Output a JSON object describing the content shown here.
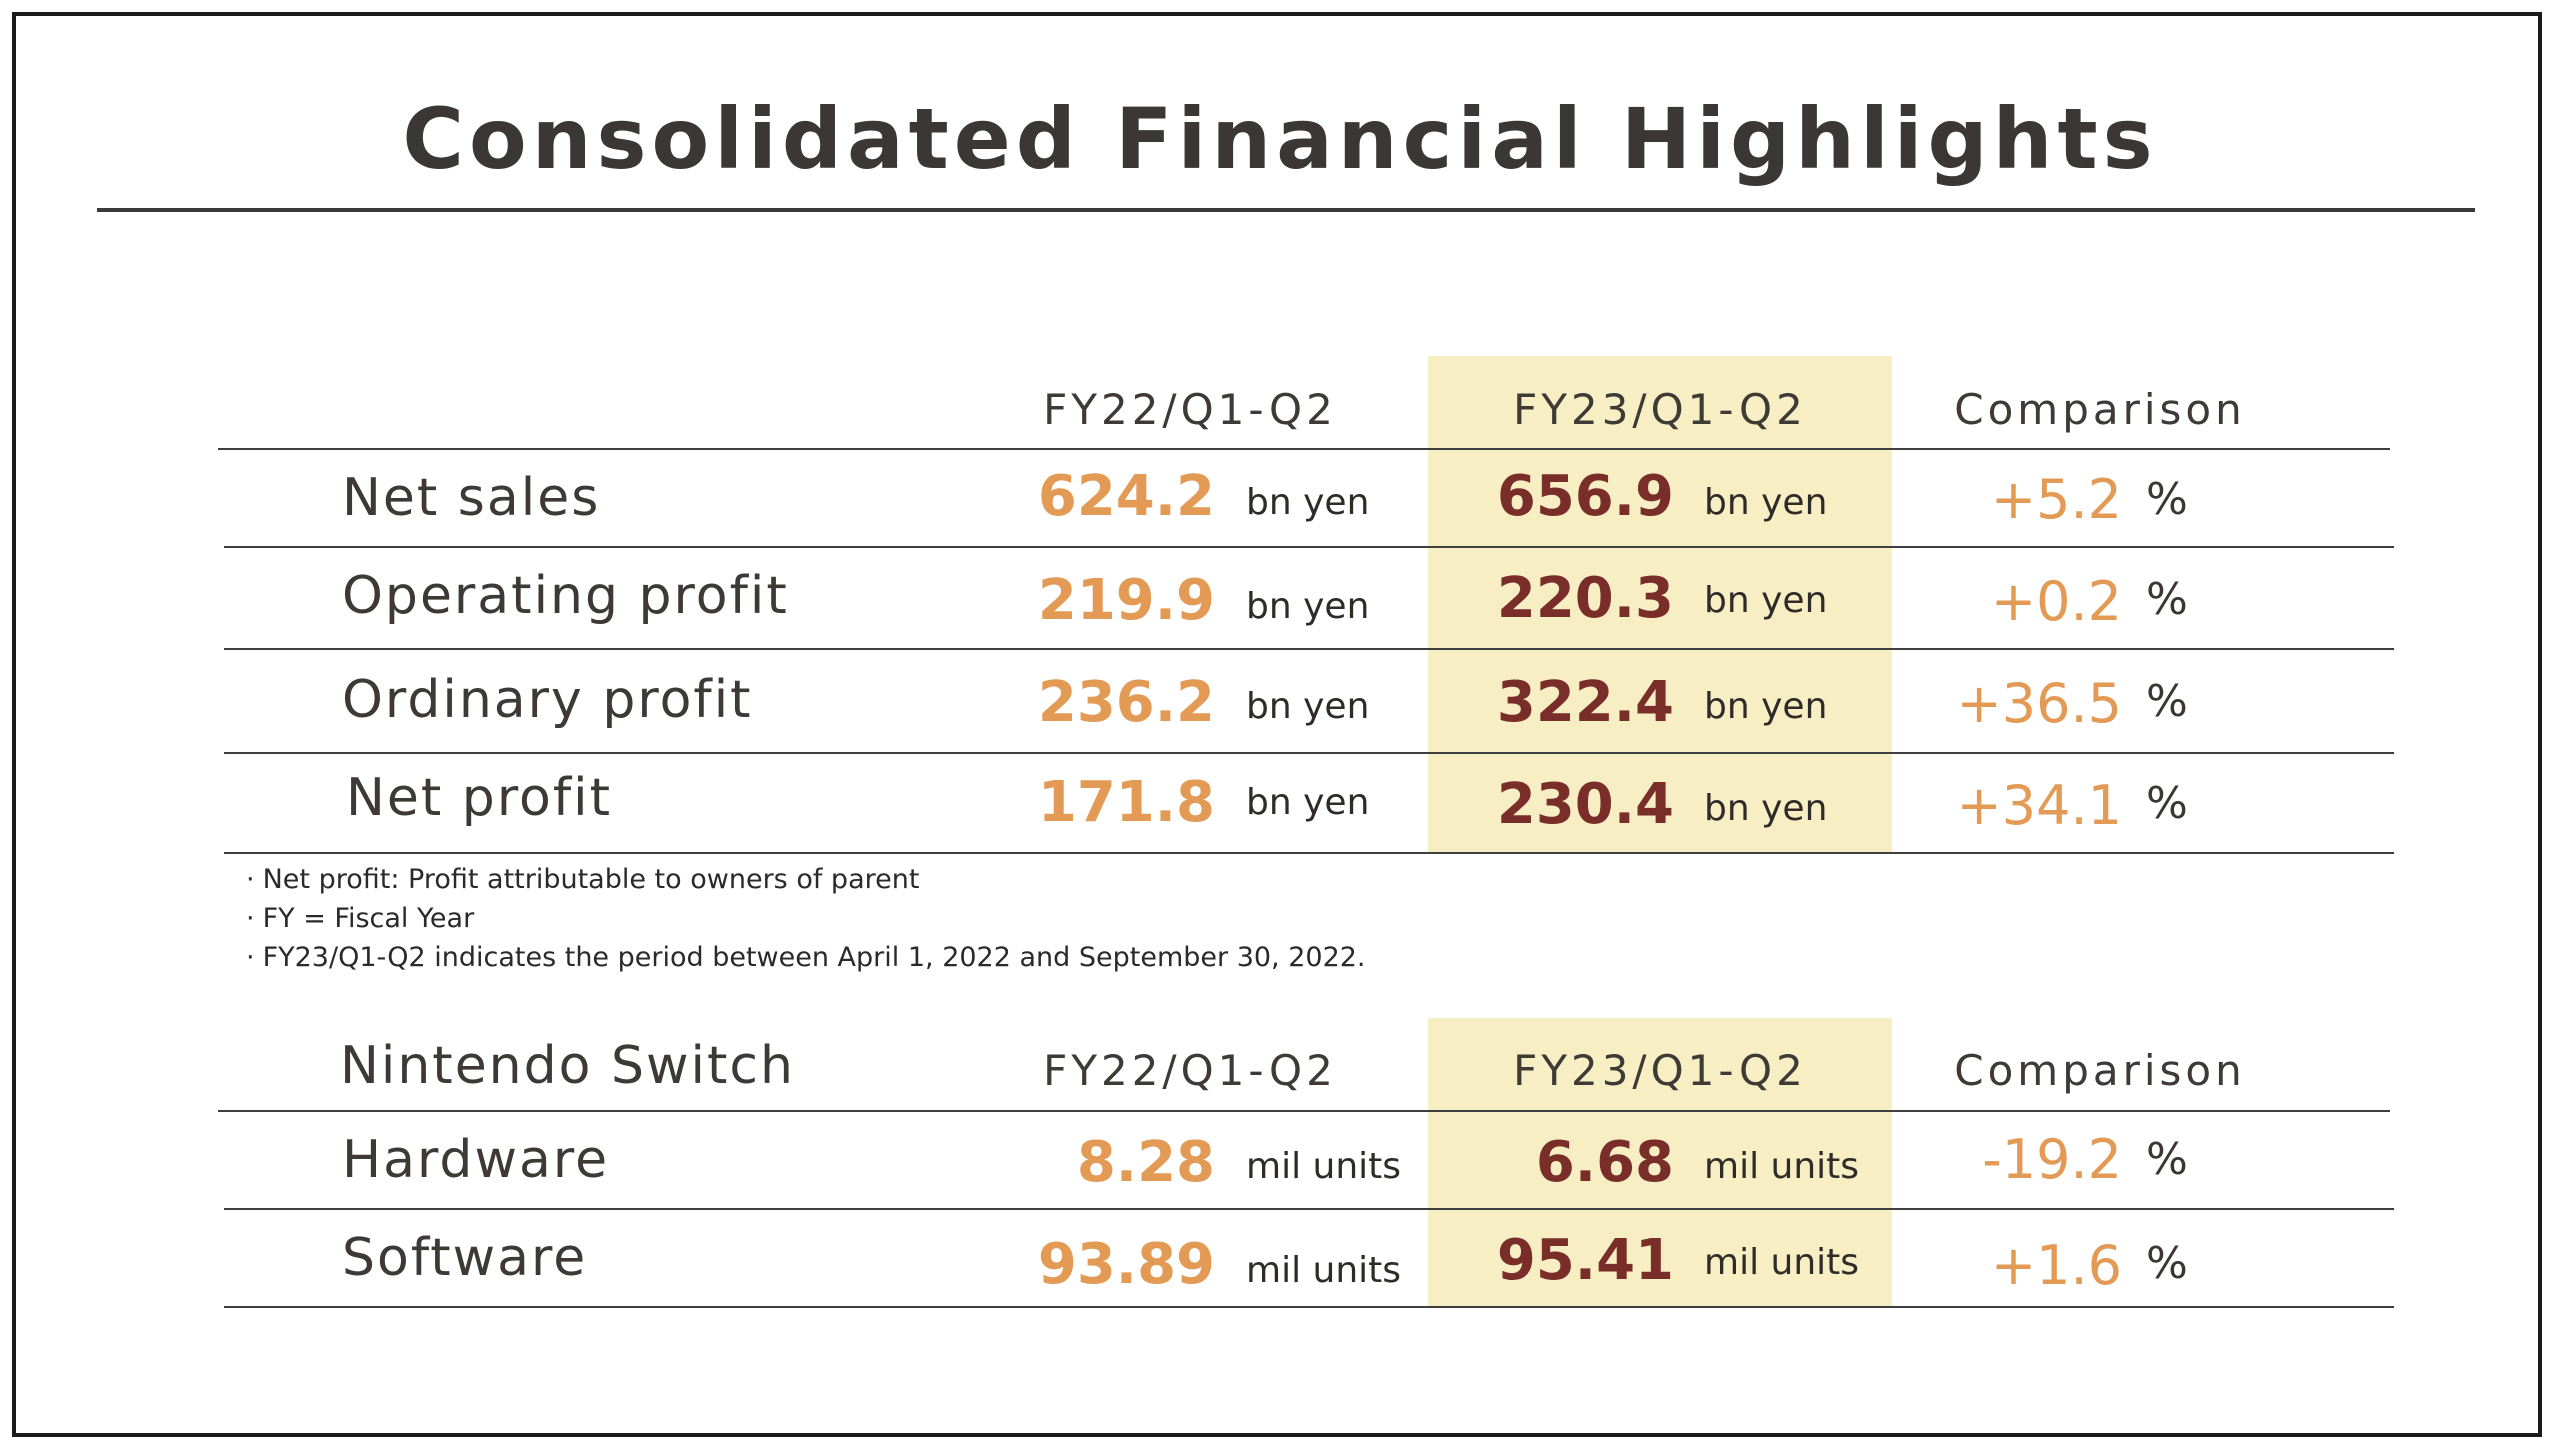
{
  "title": "Consolidated Financial Highlights",
  "table1": {
    "headers": [
      "FY22/Q1-Q2",
      "FY23/Q1-Q2",
      "Comparison"
    ],
    "rows": [
      {
        "label": "Net sales",
        "fy22": "624.2",
        "fy22_unit": "bn yen",
        "fy23": "656.9",
        "fy23_unit": "bn yen",
        "comparison": "+5.2",
        "pct": "%"
      },
      {
        "label": "Operating profit",
        "fy22": "219.9",
        "fy22_unit": "bn yen",
        "fy23": "220.3",
        "fy23_unit": "bn yen",
        "comparison": "+0.2",
        "pct": "%"
      },
      {
        "label": "Ordinary profit",
        "fy22": "236.2",
        "fy22_unit": "bn yen",
        "fy23": "322.4",
        "fy23_unit": "bn yen",
        "comparison": "+36.5",
        "pct": "%"
      },
      {
        "label": "Net profit",
        "fy22": "171.8",
        "fy22_unit": "bn yen",
        "fy23": "230.4",
        "fy23_unit": "bn yen",
        "comparison": "+34.1",
        "pct": "%"
      }
    ]
  },
  "notes": [
    "Net profit: Profit attributable to owners of parent",
    "FY = Fiscal Year",
    "FY23/Q1-Q2 indicates the period between April 1, 2022 and September 30, 2022."
  ],
  "table2": {
    "section_label": "Nintendo Switch",
    "headers": [
      "FY22/Q1-Q2",
      "FY23/Q1-Q2",
      "Comparison"
    ],
    "rows": [
      {
        "label": "Hardware",
        "fy22": "8.28",
        "fy22_unit": "mil units",
        "fy23": "6.68",
        "fy23_unit": "mil units",
        "comparison": "-19.2",
        "pct": "%"
      },
      {
        "label": "Software",
        "fy22": "93.89",
        "fy22_unit": "mil units",
        "fy23": "95.41",
        "fy23_unit": "mil units",
        "comparison": "+1.6",
        "pct": "%"
      }
    ]
  },
  "colors": {
    "highlight_column": "#f8eec4",
    "fy22_values": "#e39a55",
    "fy23_values": "#7a2e2a",
    "comparison_values": "#e39a55"
  }
}
